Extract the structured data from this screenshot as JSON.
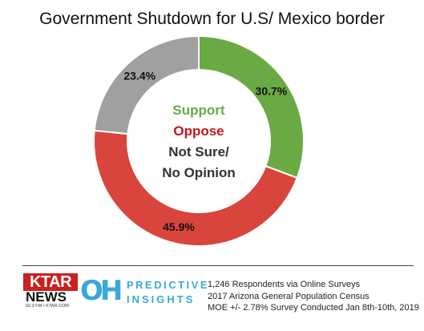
{
  "chart_data": {
    "type": "pie",
    "title": "Government Shutdown for U.S/ Mexico border",
    "slices": [
      {
        "name": "Support",
        "value": 30.7,
        "label": "30.7%",
        "color": "#6aaa45"
      },
      {
        "name": "Oppose",
        "value": 45.9,
        "label": "45.9%",
        "color": "#d9453c"
      },
      {
        "name": "Not Sure/ No Opinion",
        "value": 23.4,
        "label": "23.4%",
        "color": "#a0a0a0"
      }
    ],
    "legend": {
      "placement": "center",
      "items": [
        {
          "text": "Support",
          "color": "#6aaa45"
        },
        {
          "text": "Oppose",
          "color": "#c0171c"
        },
        {
          "text": "Not Sure/",
          "color": "#333333"
        },
        {
          "text": "No Opinion",
          "color": "#333333"
        }
      ]
    }
  },
  "footer": {
    "ktar_text": "KTAR",
    "news_text": "NEWS",
    "station_text": "92.3 FM • KTAR.COM",
    "oh_text": "OH",
    "brand_line1": "PREDICTIVE",
    "brand_line2": "INSIGHTS",
    "notes": [
      "1,246 Respondents via Online Surveys",
      "2017 Arizona General Population Census",
      "MOE +/- 2.78% Survey Conducted Jan 8th-10th, 2019"
    ]
  }
}
